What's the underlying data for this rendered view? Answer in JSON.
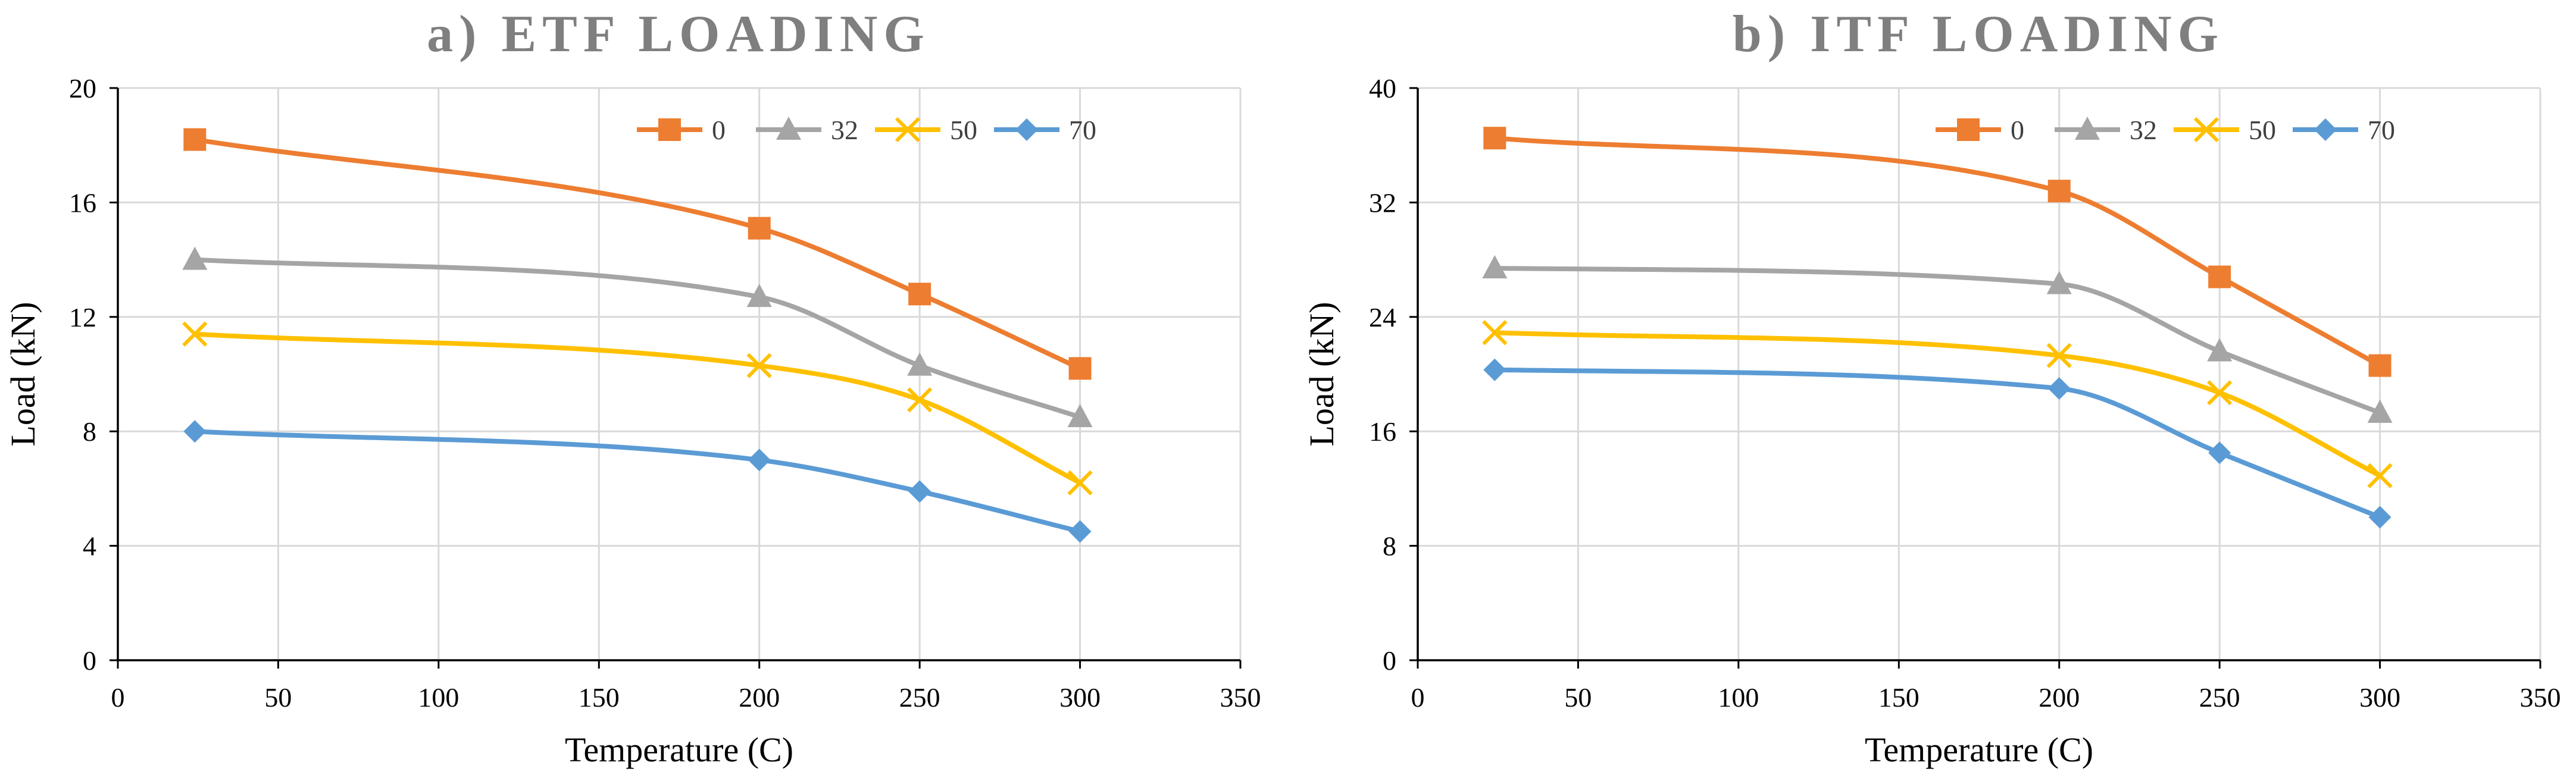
{
  "chart_data": [
    {
      "type": "line",
      "title": "a) ETF LOADING",
      "xlabel": "Temperature (C)",
      "ylabel": "Load (kN)",
      "xlim": [
        0,
        350
      ],
      "ylim": [
        0,
        20
      ],
      "xticks": [
        0,
        50,
        100,
        150,
        200,
        250,
        300,
        350
      ],
      "yticks": [
        0,
        4,
        8,
        12,
        16,
        20
      ],
      "grid": true,
      "legend_position": "top-right",
      "x": [
        24,
        200,
        250,
        300
      ],
      "series": [
        {
          "name": "0",
          "values": [
            18.2,
            15.1,
            12.8,
            10.2
          ],
          "color": "#ED7D31",
          "marker": "square"
        },
        {
          "name": "32",
          "values": [
            14.0,
            12.7,
            10.3,
            8.5
          ],
          "color": "#A5A5A5",
          "marker": "triangle"
        },
        {
          "name": "50",
          "values": [
            11.4,
            10.3,
            9.1,
            6.2
          ],
          "color": "#FFC000",
          "marker": "x"
        },
        {
          "name": "70",
          "values": [
            8.0,
            7.0,
            5.9,
            4.5
          ],
          "color": "#5B9BD5",
          "marker": "diamond"
        }
      ]
    },
    {
      "type": "line",
      "title": "b) ITF LOADING",
      "xlabel": "Temperature (C)",
      "ylabel": "Load (kN)",
      "xlim": [
        0,
        350
      ],
      "ylim": [
        0,
        40
      ],
      "xticks": [
        0,
        50,
        100,
        150,
        200,
        250,
        300,
        350
      ],
      "yticks": [
        0,
        8,
        16,
        24,
        32,
        40
      ],
      "grid": true,
      "legend_position": "top-right",
      "x": [
        24,
        200,
        250,
        300
      ],
      "series": [
        {
          "name": "0",
          "values": [
            36.5,
            32.8,
            26.8,
            20.6
          ],
          "color": "#ED7D31",
          "marker": "square"
        },
        {
          "name": "32",
          "values": [
            27.4,
            26.3,
            21.6,
            17.3
          ],
          "color": "#A5A5A5",
          "marker": "triangle"
        },
        {
          "name": "50",
          "values": [
            22.9,
            21.3,
            18.7,
            12.9
          ],
          "color": "#FFC000",
          "marker": "x"
        },
        {
          "name": "70",
          "values": [
            20.3,
            19.0,
            14.5,
            10.0
          ],
          "color": "#5B9BD5",
          "marker": "diamond"
        }
      ]
    }
  ]
}
